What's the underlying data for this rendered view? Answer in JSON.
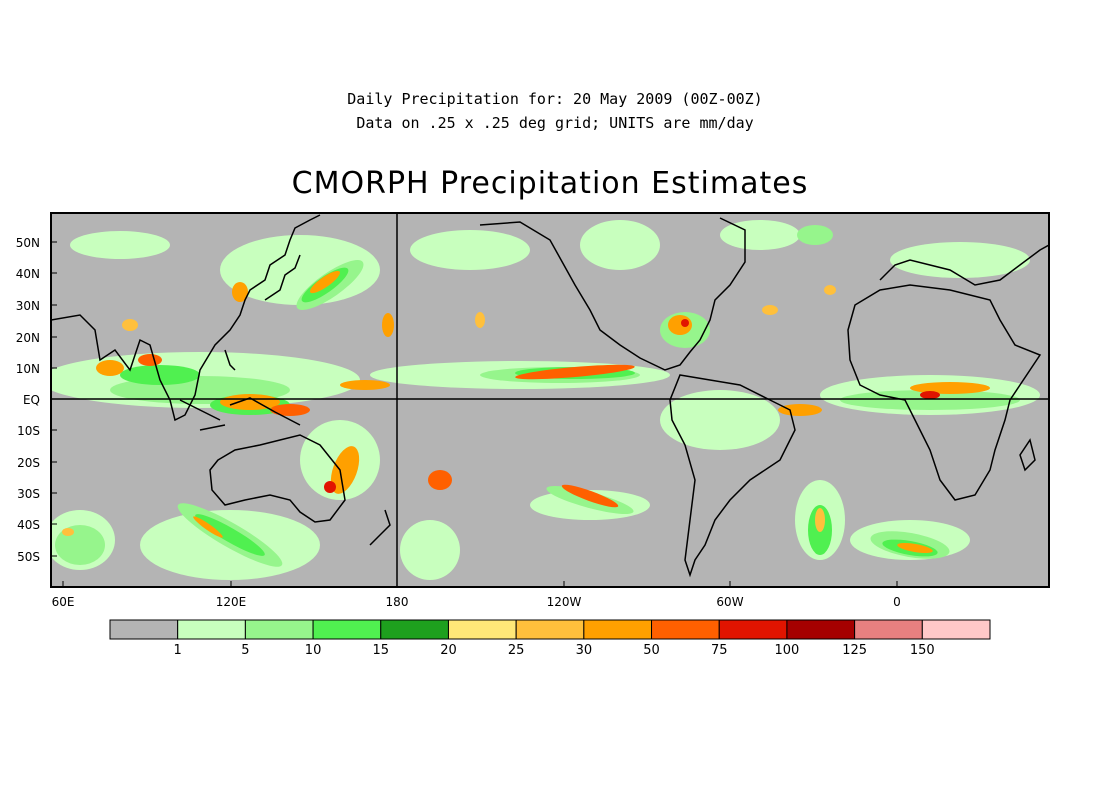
{
  "header": {
    "line1": "Daily Precipitation for: 20 May 2009 (00Z-00Z)",
    "line2": "Data on .25 x .25 deg grid; UNITS are mm/day"
  },
  "map": {
    "title": "CMORPH Precipitation Estimates",
    "background_color": "#b4b4b4",
    "coastline_color": "#000000",
    "lat_labels": [
      "50N",
      "40N",
      "30N",
      "20N",
      "10N",
      "EQ",
      "10S",
      "20S",
      "30S",
      "40S",
      "50S"
    ],
    "lon_labels": [
      "60E",
      "120E",
      "180",
      "120W",
      "60W",
      "0"
    ],
    "reference_lines": [
      "EQ",
      "180"
    ]
  },
  "legend": {
    "colors": [
      "#b4b4b4",
      "#c8ffbe",
      "#96f58c",
      "#50f050",
      "#1ea01e",
      "#ffe878",
      "#ffc03c",
      "#ffa000",
      "#ff6000",
      "#e11400",
      "#a50000",
      "#e88080",
      "#ffc8c8"
    ],
    "labels": [
      "1",
      "5",
      "10",
      "15",
      "20",
      "25",
      "30",
      "50",
      "75",
      "100",
      "125",
      "150"
    ]
  }
}
